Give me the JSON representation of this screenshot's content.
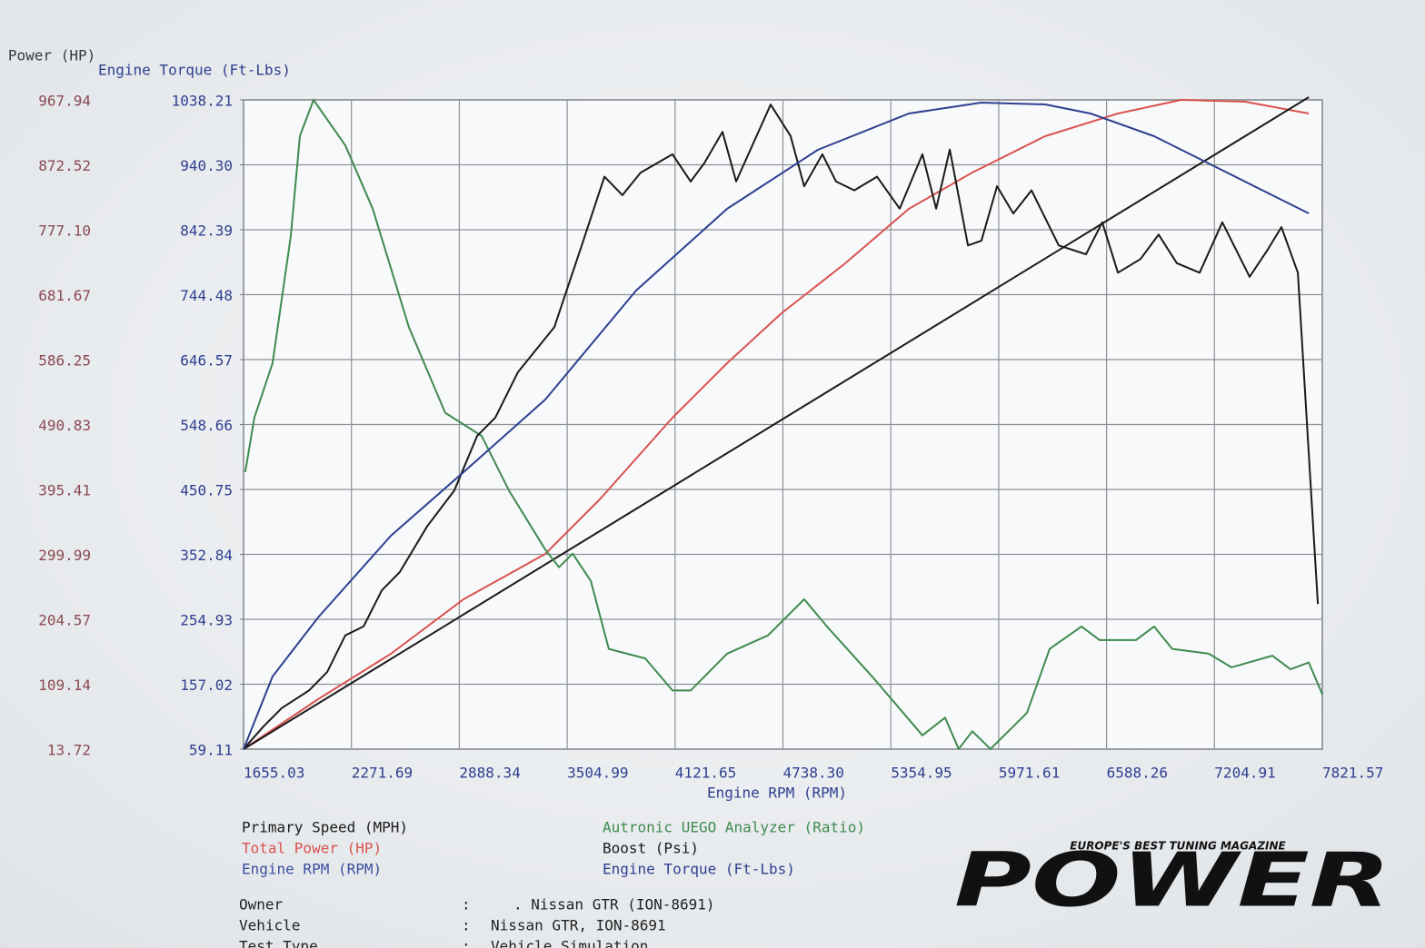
{
  "chart_data": {
    "type": "line",
    "y_axis_label": "al Power (HP)",
    "y2_axis_label": "Engine Torque (Ft-Lbs)",
    "x_axis_label": "Engine RPM (RPM)",
    "xlim": [
      1655.03,
      7821.57
    ],
    "xticks": [
      1655.03,
      2271.69,
      2888.34,
      3504.99,
      4121.65,
      {
        "value": 4738.3,
        "label": "4738.30"
      },
      5354.95,
      5971.61,
      6588.26,
      7204.91,
      7821.57
    ],
    "ylim": [
      13.72,
      967.94
    ],
    "yticks": [
      13.72,
      109.14,
      204.57,
      299.99,
      395.41,
      490.83,
      586.25,
      681.67,
      {
        "value": 777.1,
        "label": "777.10"
      },
      872.52,
      967.94
    ],
    "y2lim": [
      59.11,
      1038.21
    ],
    "y2ticks": [
      59.11,
      157.02,
      254.93,
      352.84,
      450.75,
      548.66,
      646.57,
      744.48,
      842.39,
      {
        "value": 940.3,
        "label": "940.30"
      },
      1038.21
    ],
    "grid": true,
    "series": [
      {
        "name": "Primary Speed (MPH)",
        "color": "#1a1a1a",
        "x": [],
        "values": []
      },
      {
        "name": "Total Power (HP)",
        "color": "#d9534f",
        "x": [
          1655,
          2081,
          2497,
          2912,
          3380,
          3691,
          4107,
          4419,
          4730,
          5094,
          5458,
          5821,
          6237,
          6653,
          7016,
          7380,
          7744
        ],
        "values": [
          13.7,
          87.1,
          153.8,
          233.9,
          300.7,
          380.7,
          500.8,
          580.9,
          654.3,
          727.7,
          807.8,
          861.2,
          914.6,
          947.9,
          967.9,
          965.3,
          947.9
        ]
      },
      {
        "name": "Engine RPM (RPM)",
        "color": "#1a1a1a",
        "legend_color": "#3a4fa0",
        "x": [
          1655,
          7744
        ],
        "values": [
          13.7,
          971.9
        ]
      },
      {
        "name": "Autronic UEGO Analyzer (Ratio)",
        "color": "#3f8a4f",
        "x": [
          1665,
          1717,
          1821,
          1925,
          1977,
          2055,
          2237,
          2393,
          2600,
          2808,
          3016,
          3172,
          3380,
          3458,
          3536,
          3640,
          3743,
          3951,
          4107,
          4211,
          4419,
          4653,
          4860,
          4990,
          5250,
          5536,
          5665,
          5743,
          5821,
          5925,
          6133,
          6263,
          6445,
          6549,
          6756,
          6860,
          6964,
          7172,
          7302,
          7536,
          7640,
          7744,
          7822
        ],
        "values": [
          421,
          501,
          581,
          768,
          915,
          968,
          901,
          808,
          634,
          508,
          474,
          394,
          307,
          281,
          301,
          261,
          161,
          147,
          100,
          100,
          154,
          181,
          234,
          194,
          120,
          34,
          60,
          14,
          40,
          14,
          67,
          161,
          194,
          174,
          174,
          194,
          161,
          154,
          134,
          151,
          131,
          141,
          94
        ]
      },
      {
        "name": "Boost (Psi)",
        "color": "#1a1a1a",
        "x": [
          1655,
          1769,
          1873,
          2029,
          2133,
          2237,
          2341,
          2445,
          2548,
          2704,
          2860,
          2990,
          3094,
          3224,
          3432,
          3588,
          3718,
          3821,
          3925,
          4107,
          4211,
          4289,
          4393,
          4471,
          4668,
          4782,
          4860,
          4964,
          5042,
          5146,
          5276,
          5406,
          5536,
          5614,
          5692,
          5796,
          5873,
          5962,
          6055,
          6159,
          6315,
          6471,
          6564,
          6653,
          6782,
          6886,
          6990,
          7120,
          7250,
          7406,
          7510,
          7588,
          7682,
          7796
        ],
        "values": [
          14,
          47,
          74,
          100,
          127,
          181,
          194,
          247,
          274,
          341,
          394,
          474,
          501,
          568,
          634,
          754,
          855,
          828,
          861,
          888,
          848,
          875,
          921,
          848,
          961,
          915,
          841,
          888,
          848,
          835,
          855,
          808,
          888,
          808,
          895,
          754,
          761,
          841,
          801,
          835,
          754,
          741,
          788,
          714,
          734,
          770,
          728,
          714,
          788,
          708,
          748,
          781,
          714,
          227
        ]
      },
      {
        "name": "Engine Torque (Ft-Lbs)",
        "color": "#2e3f8f",
        "axis": "y2",
        "x": [
          1655,
          1821,
          2081,
          2497,
          2912,
          3380,
          3899,
          4419,
          4938,
          5458,
          5873,
          6237,
          6497,
          6860,
          7172,
          7536,
          7744
        ],
        "values": [
          59.1,
          168.7,
          257.7,
          380.9,
          476.8,
          586.3,
          750.6,
          873.9,
          962.9,
          1017.7,
          1034.1,
          1031.4,
          1017.7,
          983.4,
          942.4,
          894.4,
          867.0
        ]
      }
    ]
  },
  "info": [
    {
      "label": "Owner",
      "value": ". Nissan GTR (ION-8691)"
    },
    {
      "label": "Vehicle",
      "value": "Nissan GTR, ION-8691"
    },
    {
      "label": "Test Type",
      "value": "Vehicle Simulation"
    }
  ],
  "logo": {
    "tagline": "EUROPE'S BEST TUNING MAGAZINE",
    "name": "POWER"
  }
}
